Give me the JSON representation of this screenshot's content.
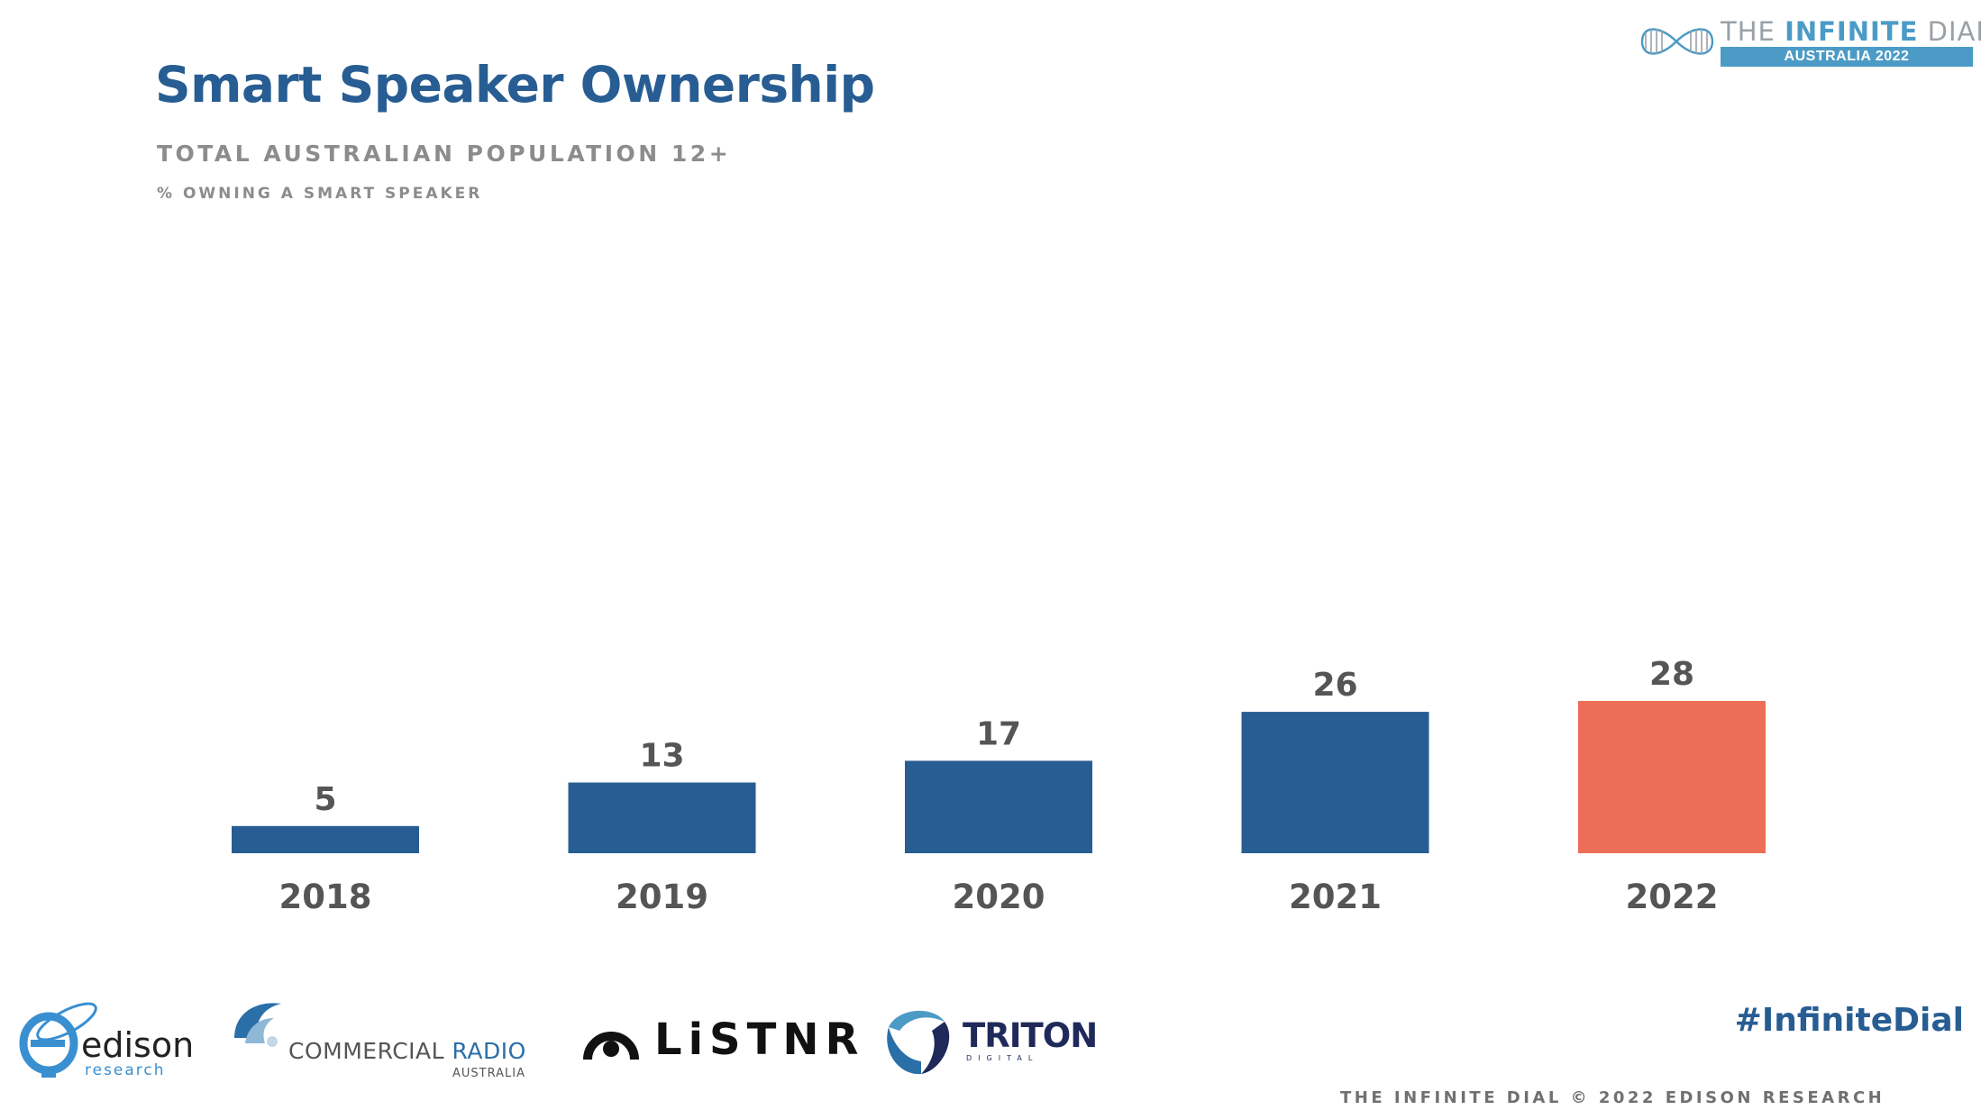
{
  "header": {
    "title": "Smart Speaker Ownership",
    "subtitle": "TOTAL AUSTRALIAN POPULATION 12+",
    "measure": "% OWNING A SMART SPEAKER"
  },
  "brand": {
    "title_prefix": "THE ",
    "title_bold": "INFINITE",
    "title_suffix": " DIAL",
    "sub": "AUSTRALIA 2022"
  },
  "chart_data": {
    "type": "bar",
    "categories": [
      "2018",
      "2019",
      "2020",
      "2021",
      "2022"
    ],
    "values": [
      5,
      13,
      17,
      26,
      28
    ],
    "colors": [
      "#275d92",
      "#275d92",
      "#275d92",
      "#275d92",
      "#ec6e56"
    ],
    "title": "Smart Speaker Ownership",
    "xlabel": "",
    "ylabel": "% OWNING A SMART SPEAKER",
    "ylim": [
      0,
      28
    ],
    "grid": false
  },
  "footer": {
    "hashtag": "#InfiniteDial",
    "copyright": "THE INFINITE DIAL  © 2022 EDISON RESEARCH",
    "logos": {
      "edison_word": "edison",
      "edison_sub": "research",
      "cra_part1": "COMMERCIAL",
      "cra_part2": "RADIO",
      "cra_sub": "AUSTRALIA",
      "listnr": "LiSTNR",
      "triton": "TRITON",
      "triton_sub": "DIGITAL"
    }
  }
}
